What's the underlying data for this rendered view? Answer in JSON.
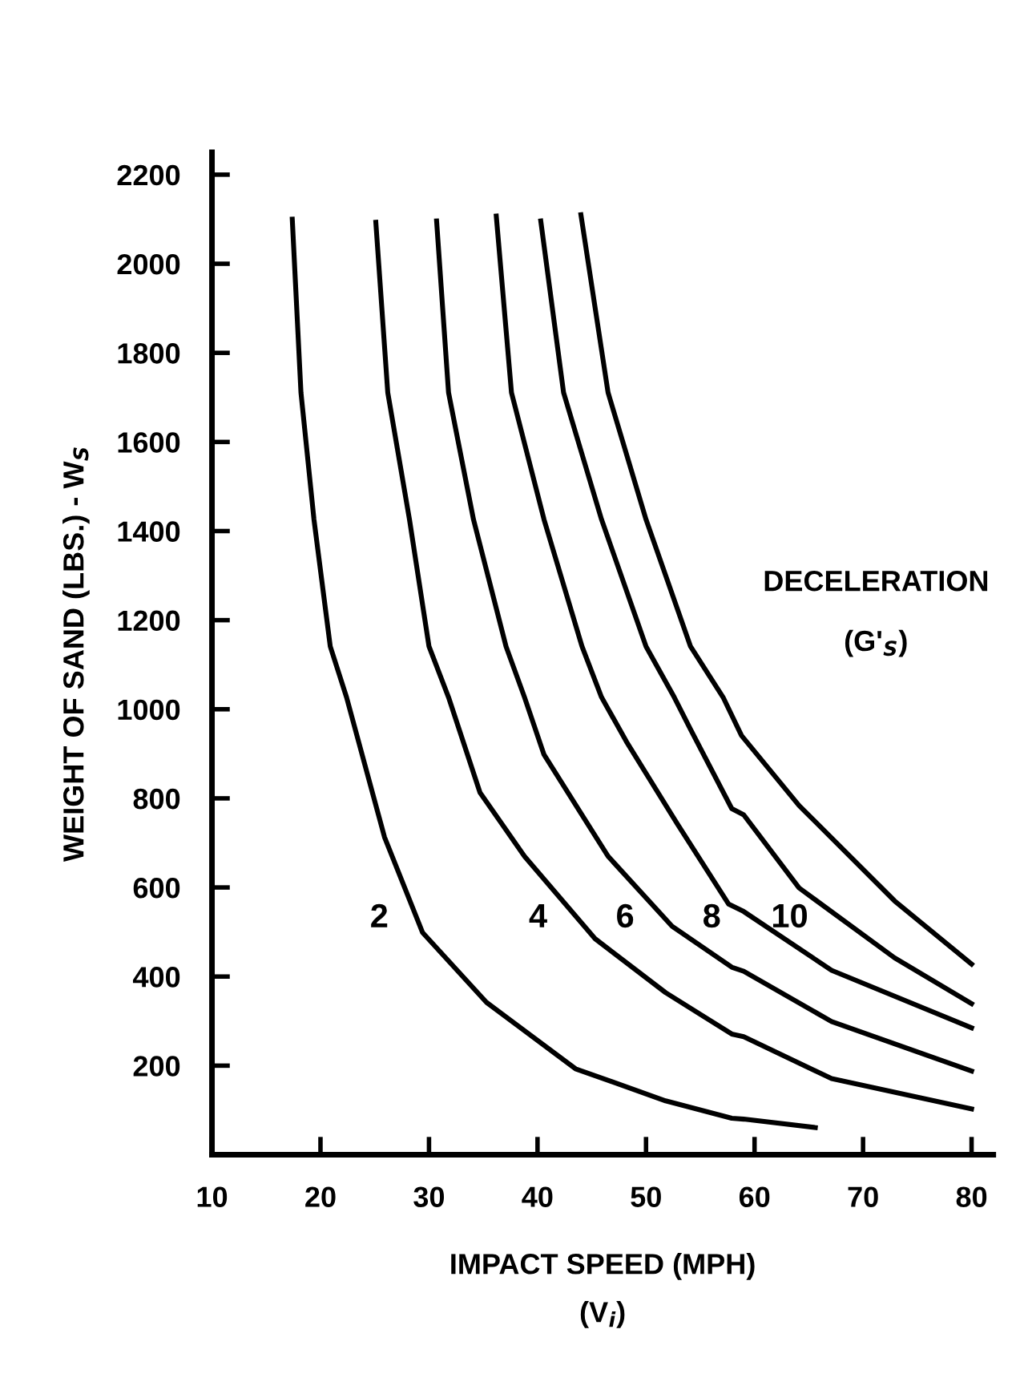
{
  "chart_data": {
    "type": "line",
    "xlabel": "IMPACT SPEED (MPH)\n(V$_{i}$)",
    "ylabel": "WEIGHT OF SAND (LBS.) - W$_{S}$",
    "xlim": [
      10,
      82
    ],
    "ylim": [
      0,
      2250
    ],
    "xticks": [
      10,
      20,
      30,
      40,
      50,
      60,
      70,
      80
    ],
    "yticks": [
      200,
      400,
      600,
      800,
      1000,
      1200,
      1400,
      1600,
      1800,
      2000,
      2200
    ],
    "grid": false,
    "legend": false,
    "marker": "none",
    "line_style": "solid",
    "series": [
      {
        "name": "2",
        "color": "#000000",
        "x": [
          17.4,
          18.2,
          19.4,
          20.9,
          22.4,
          25.9,
          29.4,
          35.3,
          43.5,
          51.8,
          57.9,
          59,
          65.6
        ],
        "values": [
          2100,
          1711,
          1426,
          1141,
          1027,
          713,
          499,
          342,
          193,
          121,
          82,
          80,
          61
        ]
      },
      {
        "name": "4",
        "color": "#000000",
        "x": [
          25.1,
          26.2,
          28.2,
          30,
          31.8,
          34.7,
          38.8,
          45.3,
          51.8,
          57.9,
          59,
          67.1,
          80
        ],
        "values": [
          2093,
          1711,
          1426,
          1141,
          1027,
          813,
          670,
          485,
          364,
          271,
          265,
          171,
          103
        ]
      },
      {
        "name": "6",
        "color": "#000000",
        "x": [
          30.7,
          31.8,
          34.1,
          37.1,
          38.8,
          40.6,
          46.5,
          52.4,
          57.9,
          59,
          67.1,
          80
        ],
        "values": [
          2096,
          1711,
          1426,
          1141,
          1027,
          898,
          670,
          513,
          421,
          412,
          299,
          188
        ]
      },
      {
        "name": "8",
        "color": "#000000",
        "x": [
          36.2,
          37.6,
          40.6,
          44.1,
          45.9,
          48.2,
          52.9,
          57.6,
          59,
          67.1,
          80
        ],
        "values": [
          2107,
          1711,
          1426,
          1141,
          1027,
          927,
          742,
          563,
          546,
          414,
          285
        ]
      },
      {
        "name": "10",
        "color": "#000000",
        "x": [
          40.3,
          42.4,
          45.9,
          50,
          52.6,
          54.1,
          57.9,
          59,
          64.1,
          72.9,
          80
        ],
        "values": [
          2096,
          1711,
          1426,
          1141,
          1027,
          955,
          777,
          763,
          599,
          442,
          339
        ]
      },
      {
        "color": "#000000",
        "x": [
          44,
          46.5,
          50,
          54.1,
          57.1,
          58.8,
          64.1,
          72.9,
          80
        ],
        "values": [
          2110,
          1711,
          1426,
          1141,
          1027,
          941,
          784,
          570,
          428
        ]
      }
    ],
    "annotations": [
      "DECELERATION",
      "(G'$_{S}$)"
    ]
  }
}
